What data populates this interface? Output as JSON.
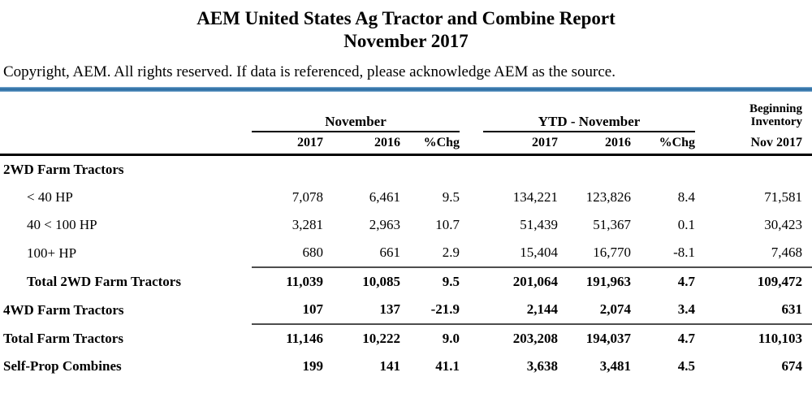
{
  "page": {
    "title": "AEM United States Ag Tractor and Combine Report",
    "subtitle": "November 2017",
    "copyright": "Copyright, AEM. All rights reserved. If data is referenced, please acknowledge AEM as the source."
  },
  "table": {
    "groups": {
      "november": "November",
      "ytd": "YTD - November",
      "beginning_line1": "Beginning",
      "beginning_line2": "Inventory"
    },
    "subheaders": [
      "2017",
      "2016",
      "%Chg",
      "2017",
      "2016",
      "%Chg",
      "Nov 2017"
    ],
    "rows": [
      {
        "label": "2WD Farm Tractors",
        "values": [
          "",
          "",
          "",
          "",
          "",
          "",
          ""
        ]
      },
      {
        "label": "< 40 HP",
        "values": [
          "7,078",
          "6,461",
          "9.5",
          "134,221",
          "123,826",
          "8.4",
          "71,581"
        ]
      },
      {
        "label": "40 < 100 HP",
        "values": [
          "3,281",
          "2,963",
          "10.7",
          "51,439",
          "51,367",
          "0.1",
          "30,423"
        ]
      },
      {
        "label": "100+ HP",
        "values": [
          "680",
          "661",
          "2.9",
          "15,404",
          "16,770",
          "-8.1",
          "7,468"
        ]
      },
      {
        "label": "Total 2WD Farm Tractors",
        "values": [
          "11,039",
          "10,085",
          "9.5",
          "201,064",
          "191,963",
          "4.7",
          "109,472"
        ]
      },
      {
        "label": "4WD Farm Tractors",
        "values": [
          "107",
          "137",
          "-21.9",
          "2,144",
          "2,074",
          "3.4",
          "631"
        ]
      },
      {
        "label": "Total Farm Tractors",
        "values": [
          "11,146",
          "10,222",
          "9.0",
          "203,208",
          "194,037",
          "4.7",
          "110,103"
        ]
      },
      {
        "label": "Self-Prop Combines",
        "values": [
          "199",
          "141",
          "41.1",
          "3,638",
          "3,481",
          "4.5",
          "674"
        ]
      }
    ]
  },
  "colors": {
    "accent_blue": "#3a79ad",
    "header_rule": "#000000",
    "row_rule": "#4d4d4d"
  }
}
